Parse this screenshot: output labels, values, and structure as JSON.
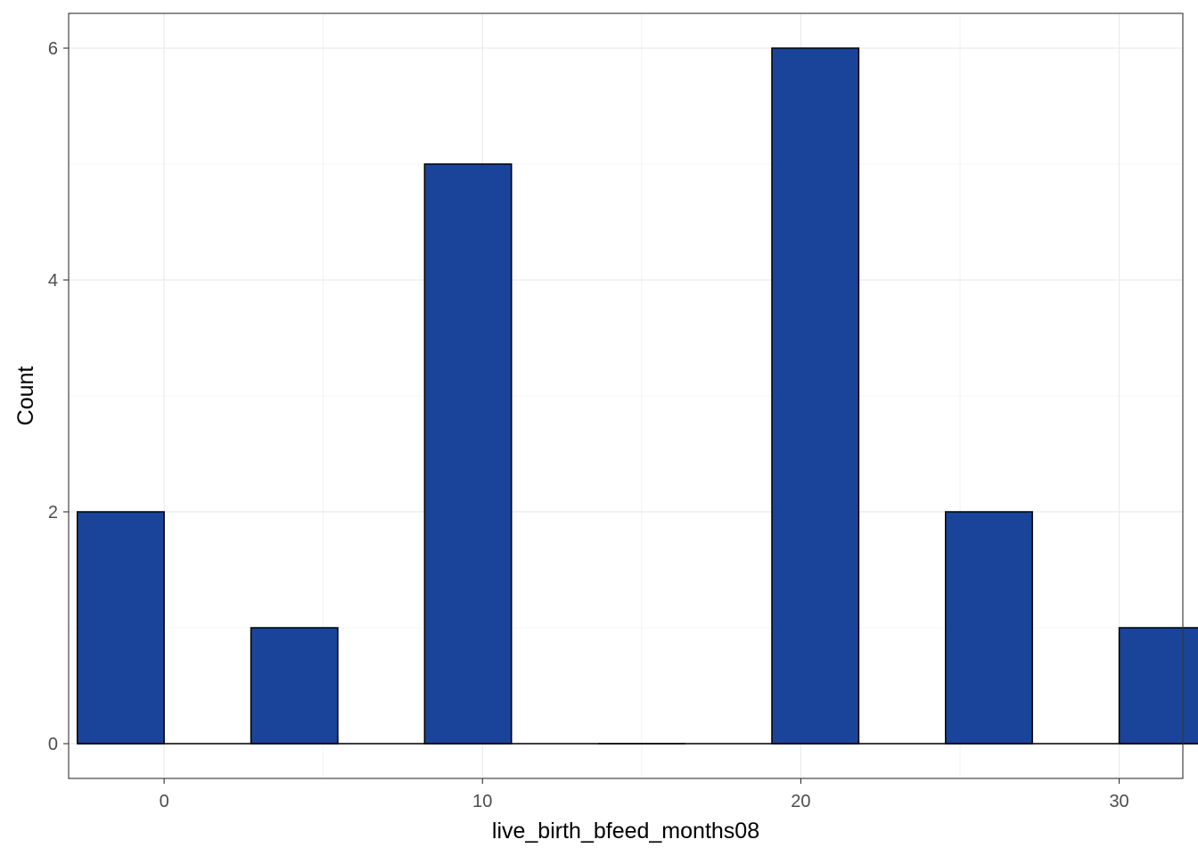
{
  "chart_data": {
    "type": "bar",
    "title": "",
    "xlabel": "live_birth_bfeed_months08",
    "ylabel": "Count",
    "bins": [
      {
        "x": -1.364,
        "count": 2
      },
      {
        "x": 4.091,
        "count": 1
      },
      {
        "x": 9.545,
        "count": 5
      },
      {
        "x": 15.0,
        "count": 0
      },
      {
        "x": 20.455,
        "count": 6
      },
      {
        "x": 25.909,
        "count": 2
      },
      {
        "x": 31.364,
        "count": 1
      }
    ],
    "xlim": [
      -3,
      32
    ],
    "ylim": [
      -0.3,
      6.3
    ],
    "x_ticks": [
      0,
      10,
      20,
      30
    ],
    "y_ticks": [
      0,
      2,
      4,
      6
    ],
    "grid": true,
    "bar_fill": "#19449A",
    "bar_stroke": "#000000",
    "grid_color": "#EBEBEB",
    "frame_color": "#333333"
  }
}
